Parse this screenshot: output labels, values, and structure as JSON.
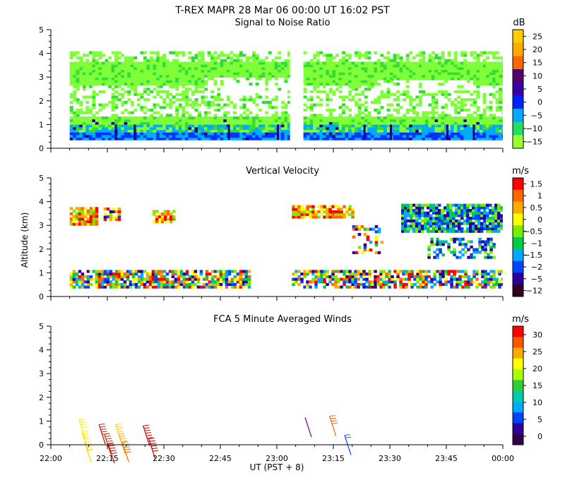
{
  "header": {
    "title": "T-REX   MAPR 28 Mar 06   00:00 UT   16:02   PST"
  },
  "axes": {
    "ylabel": "Altitude (km)",
    "xlabel": "UT  (PST + 8)",
    "x_ticks": [
      "22:00",
      "22:15",
      "22:30",
      "22:45",
      "23:00",
      "23:15",
      "23:30",
      "23:45",
      "00:00"
    ],
    "y_ticks": [
      "0",
      "1",
      "2",
      "3",
      "4",
      "5"
    ],
    "xlim_minutes": [
      0,
      120
    ],
    "ylim_km": [
      0,
      5
    ]
  },
  "colors": {
    "white_background": "#ffffff",
    "green": "#7fff3a",
    "dark_green": "#33dd33",
    "cyan": "#00aaff",
    "blue": "#0033ff",
    "navy": "#1a0088"
  },
  "chart_data": [
    {
      "type": "heatmap",
      "title": "Signal to Noise Ratio",
      "unit": "dB",
      "colorbar_ticks": [
        "25",
        "20",
        "15",
        "10",
        "5",
        "0",
        "−5",
        "−10",
        "−15"
      ],
      "colorbar_colors": [
        "#ffcc00",
        "#ffaa00",
        "#ff6600",
        "#55006a",
        "#3300aa",
        "#0022ff",
        "#00aaff",
        "#22dd66",
        "#99ff33"
      ],
      "data_gap_minutes": [
        63.5,
        66.5
      ],
      "echo_top_km_approx": 3.9,
      "echo_bottom_km": 0.35
    },
    {
      "type": "heatmap",
      "title": "Vertical Velocity",
      "unit": "m/s",
      "colorbar_ticks": [
        "1.5",
        "1",
        "0.5",
        "0",
        "−0.5",
        "−1",
        "−1.5",
        "−2",
        "−5",
        "−12"
      ],
      "colorbar_colors": [
        "#ff0000",
        "#ff6600",
        "#ffaa00",
        "#ffff00",
        "#77ee00",
        "#00cc44",
        "#00aaff",
        "#0044ff",
        "#2a0099",
        "#330022"
      ],
      "data_gap_minutes": [
        53,
        63
      ]
    },
    {
      "type": "scatter",
      "title": "FCA 5 Minute Averaged Winds",
      "unit": "m/s",
      "colorbar_ticks": [
        "30",
        "25",
        "20",
        "15",
        "10",
        "5",
        "0"
      ],
      "colorbar_colors": [
        "#ff0000",
        "#ff5500",
        "#ffaa00",
        "#ffff00",
        "#aaff00",
        "#33cc33",
        "#00ccaa",
        "#00aaff",
        "#0044ff",
        "#330099",
        "#330044"
      ],
      "barbs": [
        {
          "time_min": 7.5,
          "alt_km": 1.05,
          "speed_ms": 20,
          "color": "#ffee00"
        },
        {
          "time_min": 8.2,
          "alt_km": 0.55,
          "speed_ms": 20,
          "color": "#ffee00"
        },
        {
          "time_min": 9.0,
          "alt_km": 0.1,
          "speed_ms": 20,
          "color": "#ffcc00"
        },
        {
          "time_min": 12.8,
          "alt_km": 0.85,
          "speed_ms": 25,
          "color": "#cc0000"
        },
        {
          "time_min": 14.2,
          "alt_km": 0.45,
          "speed_ms": 25,
          "color": "#cc3300"
        },
        {
          "time_min": 15.2,
          "alt_km": 0.05,
          "speed_ms": 25,
          "color": "#cc0000"
        },
        {
          "time_min": 17.2,
          "alt_km": 0.85,
          "speed_ms": 20,
          "color": "#ffcc00"
        },
        {
          "time_min": 18.0,
          "alt_km": 0.45,
          "speed_ms": 20,
          "color": "#ffaa00"
        },
        {
          "time_min": 19.0,
          "alt_km": 0.1,
          "speed_ms": 25,
          "color": "#ff6600"
        },
        {
          "time_min": 24.5,
          "alt_km": 0.8,
          "speed_ms": 28,
          "color": "#cc0000"
        },
        {
          "time_min": 26.0,
          "alt_km": 0.25,
          "speed_ms": 28,
          "color": "#aa0000"
        },
        {
          "time_min": 67.5,
          "alt_km": 1.15,
          "speed_ms": 0,
          "color": "#6600aa"
        },
        {
          "time_min": 74.0,
          "alt_km": 1.2,
          "speed_ms": 22,
          "color": "#ff6600"
        },
        {
          "time_min": 78.0,
          "alt_km": 0.4,
          "speed_ms": 8,
          "color": "#0044ff"
        }
      ]
    }
  ]
}
